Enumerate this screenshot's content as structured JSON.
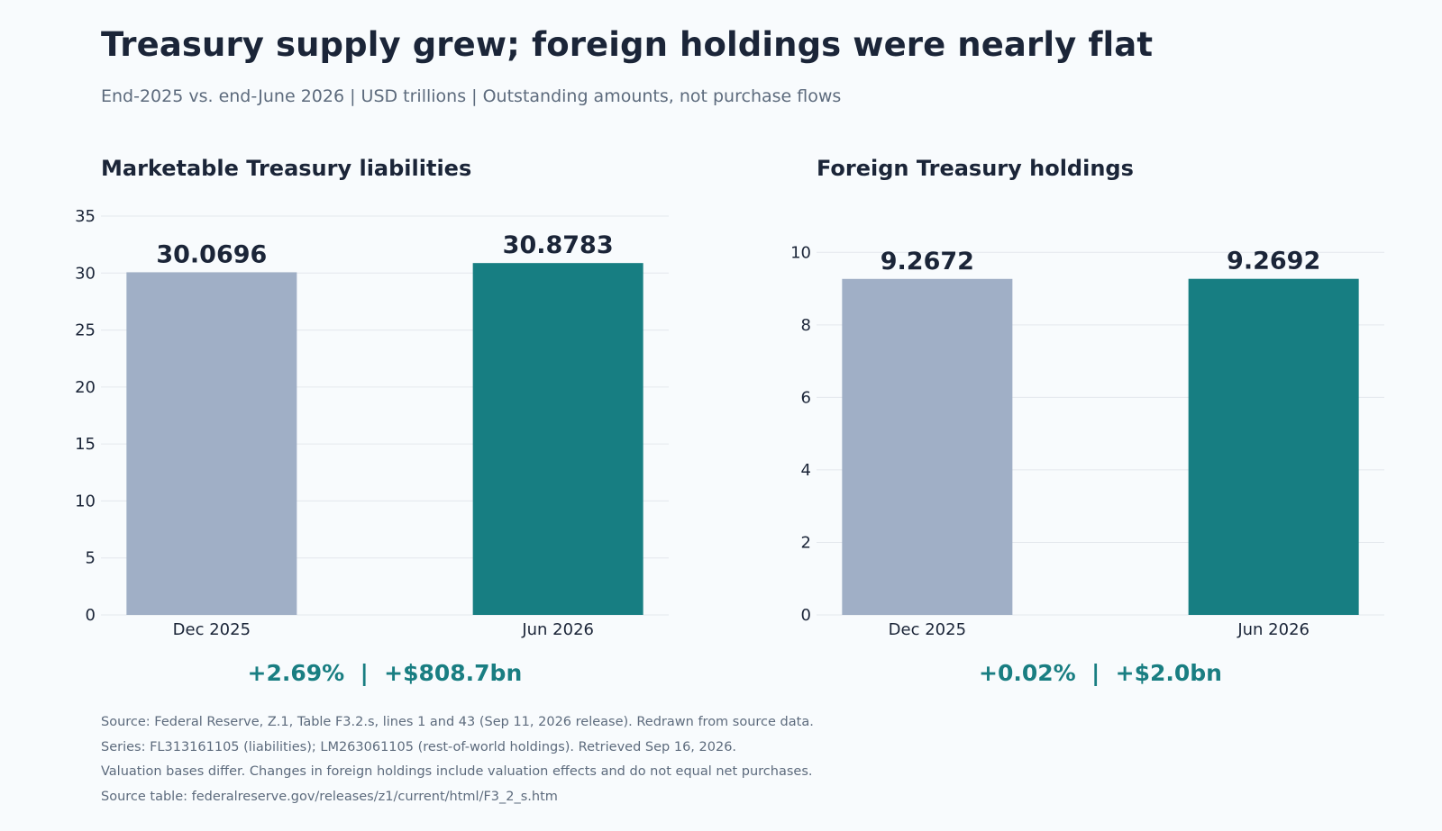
{
  "title": "Treasury supply grew; foreign holdings were nearly flat",
  "subtitle": "End-2025 vs. end-June 2026  |  USD trillions  |  Outstanding amounts, not purchase flows",
  "colors": {
    "dec_bar": "#a0afc6",
    "jun_bar": "#177e82",
    "accent_text": "#197e82",
    "grid": "#e4e8ed",
    "value_label": "#1b2538"
  },
  "chart_data": [
    {
      "type": "bar",
      "title": "Marketable Treasury liabilities",
      "categories": [
        "Dec 2025",
        "Jun 2026"
      ],
      "values": [
        30.0696,
        30.8783
      ],
      "value_labels": [
        "30.0696",
        "30.8783"
      ],
      "yticks": [
        0,
        5,
        10,
        15,
        20,
        25,
        30,
        35
      ],
      "ylim": [
        0,
        35
      ],
      "grid": true,
      "change_label": "+2.69%  |  +$808.7bn"
    },
    {
      "type": "bar",
      "title": "Foreign Treasury holdings",
      "categories": [
        "Dec 2025",
        "Jun 2026"
      ],
      "values": [
        9.2672,
        9.2692
      ],
      "value_labels": [
        "9.2672",
        "9.2692"
      ],
      "yticks": [
        0,
        2,
        4,
        6,
        8,
        10
      ],
      "ylim": [
        0,
        11
      ],
      "grid": true,
      "change_label": "+0.02%  |  +$2.0bn"
    }
  ],
  "footnotes": [
    "Source: Federal Reserve, Z.1, Table F3.2.s, lines 1 and 43 (Sep 11, 2026 release). Redrawn from source data.",
    "Series: FL313161105 (liabilities); LM263061105 (rest-of-world holdings). Retrieved Sep 16, 2026.",
    "Valuation bases differ. Changes in foreign holdings include valuation effects and do not equal net purchases.",
    "Source table: federalreserve.gov/releases/z1/current/html/F3_2_s.htm"
  ]
}
